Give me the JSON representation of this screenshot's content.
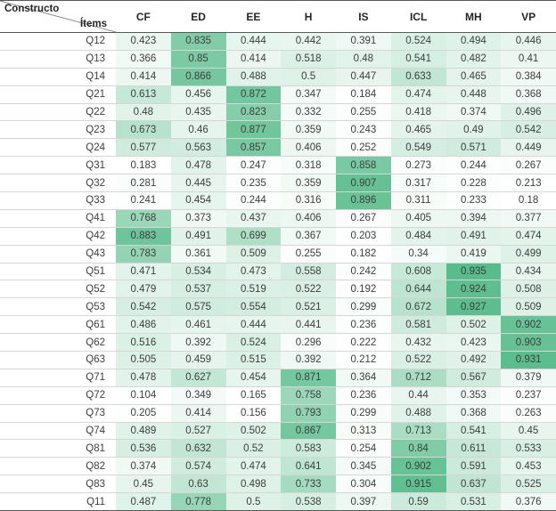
{
  "chart_data": {
    "type": "heatmap",
    "corner": {
      "top": "Constructo",
      "bottom": "Ítems"
    },
    "columns": [
      "CF",
      "ED",
      "EE",
      "H",
      "IS",
      "ICL",
      "MH",
      "VP"
    ],
    "rows": [
      {
        "item": "Q12",
        "values": [
          0.423,
          0.835,
          0.444,
          0.442,
          0.391,
          0.524,
          0.494,
          0.446
        ]
      },
      {
        "item": "Q13",
        "values": [
          0.366,
          0.85,
          0.414,
          0.518,
          0.48,
          0.541,
          0.482,
          0.41
        ]
      },
      {
        "item": "Q14",
        "values": [
          0.414,
          0.866,
          0.488,
          0.5,
          0.447,
          0.633,
          0.465,
          0.384
        ]
      },
      {
        "item": "Q21",
        "values": [
          0.613,
          0.456,
          0.872,
          0.347,
          0.184,
          0.474,
          0.448,
          0.368
        ]
      },
      {
        "item": "Q22",
        "values": [
          0.48,
          0.435,
          0.823,
          0.332,
          0.255,
          0.418,
          0.374,
          0.496
        ]
      },
      {
        "item": "Q23",
        "values": [
          0.673,
          0.46,
          0.877,
          0.359,
          0.243,
          0.465,
          0.49,
          0.542
        ]
      },
      {
        "item": "Q24",
        "values": [
          0.577,
          0.563,
          0.857,
          0.406,
          0.252,
          0.549,
          0.571,
          0.449
        ]
      },
      {
        "item": "Q31",
        "values": [
          0.183,
          0.478,
          0.247,
          0.318,
          0.858,
          0.273,
          0.244,
          0.267
        ]
      },
      {
        "item": "Q32",
        "values": [
          0.281,
          0.445,
          0.235,
          0.359,
          0.907,
          0.317,
          0.228,
          0.213
        ]
      },
      {
        "item": "Q33",
        "values": [
          0.241,
          0.454,
          0.244,
          0.316,
          0.896,
          0.311,
          0.233,
          0.18
        ]
      },
      {
        "item": "Q41",
        "values": [
          0.768,
          0.373,
          0.437,
          0.406,
          0.267,
          0.405,
          0.394,
          0.377
        ]
      },
      {
        "item": "Q42",
        "values": [
          0.883,
          0.491,
          0.699,
          0.367,
          0.203,
          0.484,
          0.491,
          0.474
        ]
      },
      {
        "item": "Q43",
        "values": [
          0.783,
          0.361,
          0.509,
          0.255,
          0.182,
          0.34,
          0.419,
          0.499
        ]
      },
      {
        "item": "Q51",
        "values": [
          0.471,
          0.534,
          0.473,
          0.558,
          0.242,
          0.608,
          0.935,
          0.434
        ]
      },
      {
        "item": "Q52",
        "values": [
          0.479,
          0.537,
          0.519,
          0.522,
          0.192,
          0.644,
          0.924,
          0.508
        ]
      },
      {
        "item": "Q53",
        "values": [
          0.542,
          0.575,
          0.554,
          0.521,
          0.299,
          0.672,
          0.927,
          0.509
        ]
      },
      {
        "item": "Q61",
        "values": [
          0.486,
          0.461,
          0.444,
          0.441,
          0.236,
          0.581,
          0.502,
          0.902
        ]
      },
      {
        "item": "Q62",
        "values": [
          0.516,
          0.392,
          0.524,
          0.296,
          0.222,
          0.432,
          0.423,
          0.903
        ]
      },
      {
        "item": "Q63",
        "values": [
          0.505,
          0.459,
          0.515,
          0.392,
          0.212,
          0.522,
          0.492,
          0.931
        ]
      },
      {
        "item": "Q71",
        "values": [
          0.478,
          0.627,
          0.454,
          0.871,
          0.364,
          0.712,
          0.567,
          0.379
        ]
      },
      {
        "item": "Q72",
        "values": [
          0.104,
          0.349,
          0.165,
          0.758,
          0.236,
          0.44,
          0.353,
          0.237
        ]
      },
      {
        "item": "Q73",
        "values": [
          0.205,
          0.414,
          0.156,
          0.793,
          0.299,
          0.488,
          0.368,
          0.263
        ]
      },
      {
        "item": "Q74",
        "values": [
          0.489,
          0.527,
          0.502,
          0.867,
          0.313,
          0.713,
          0.541,
          0.45
        ]
      },
      {
        "item": "Q81",
        "values": [
          0.536,
          0.632,
          0.52,
          0.583,
          0.254,
          0.84,
          0.611,
          0.533
        ]
      },
      {
        "item": "Q82",
        "values": [
          0.374,
          0.574,
          0.474,
          0.641,
          0.345,
          0.902,
          0.591,
          0.453
        ]
      },
      {
        "item": "Q83",
        "values": [
          0.45,
          0.63,
          0.498,
          0.733,
          0.304,
          0.915,
          0.637,
          0.525
        ]
      },
      {
        "item": "Q11",
        "values": [
          0.487,
          0.778,
          0.5,
          0.538,
          0.397,
          0.59,
          0.531,
          0.376
        ]
      }
    ],
    "color_scale": {
      "min_value": 0.1,
      "max_value": 0.94,
      "gamma": 2.2,
      "min_color": "#ffffff",
      "max_color": "#57bb8a"
    }
  }
}
